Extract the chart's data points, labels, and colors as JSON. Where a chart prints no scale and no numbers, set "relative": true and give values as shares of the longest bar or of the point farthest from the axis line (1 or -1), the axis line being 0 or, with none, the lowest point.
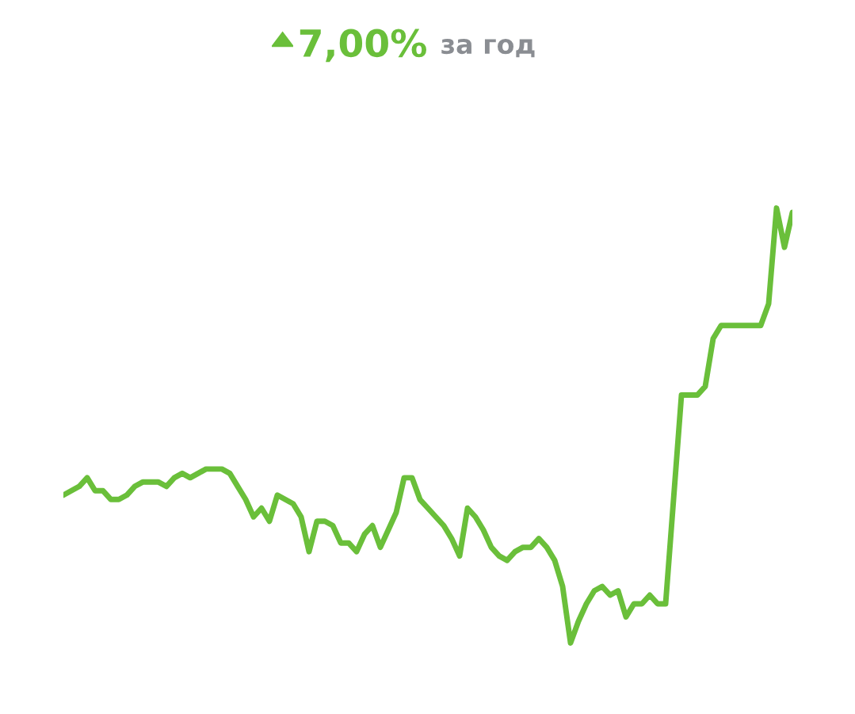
{
  "chart_data": {
    "type": "line",
    "title": "7,00%",
    "subtitle": "за год",
    "relative": true,
    "color": "#6abf3a",
    "categories": [
      null,
      null,
      null,
      null,
      null,
      null,
      null,
      null,
      null,
      null,
      null,
      null,
      null,
      null,
      null,
      null,
      null,
      null,
      null,
      null,
      null,
      null,
      null,
      null,
      null,
      null,
      null,
      null,
      null,
      null,
      null,
      null,
      null,
      null,
      null,
      null,
      null,
      null,
      null,
      null,
      null,
      null,
      null,
      null,
      null,
      null,
      null,
      null,
      null,
      null,
      null,
      null,
      null,
      null,
      null,
      null,
      null,
      null,
      null,
      null,
      null,
      null,
      null,
      null,
      null,
      null,
      null,
      null,
      null,
      null,
      null,
      null,
      null,
      null,
      null,
      null,
      null,
      null,
      null,
      null,
      null,
      null,
      null,
      null,
      null,
      null,
      null,
      null,
      null,
      null,
      null,
      null,
      null
    ],
    "values": [
      0.34,
      0.35,
      0.36,
      0.38,
      0.35,
      0.35,
      0.33,
      0.33,
      0.34,
      0.36,
      0.37,
      0.37,
      0.37,
      0.36,
      0.38,
      0.39,
      0.38,
      0.39,
      0.4,
      0.4,
      0.4,
      0.39,
      0.36,
      0.33,
      0.29,
      0.31,
      0.28,
      0.34,
      0.33,
      0.32,
      0.29,
      0.21,
      0.28,
      0.28,
      0.27,
      0.23,
      0.23,
      0.21,
      0.25,
      0.27,
      0.22,
      0.26,
      0.3,
      0.38,
      0.38,
      0.33,
      0.31,
      0.29,
      0.27,
      0.24,
      0.2,
      0.31,
      0.29,
      0.26,
      0.22,
      0.2,
      0.19,
      0.21,
      0.22,
      0.22,
      0.24,
      0.22,
      0.19,
      0.13,
      0,
      0.05,
      0.09,
      0.12,
      0.13,
      0.11,
      0.12,
      0.06,
      0.09,
      0.09,
      0.11,
      0.09,
      0.09,
      0.33,
      0.57,
      0.57,
      0.57,
      0.59,
      0.7,
      0.73,
      0.73,
      0.73,
      0.73,
      0.73,
      0.73,
      0.78,
      1,
      0.91,
      0.99
    ]
  }
}
